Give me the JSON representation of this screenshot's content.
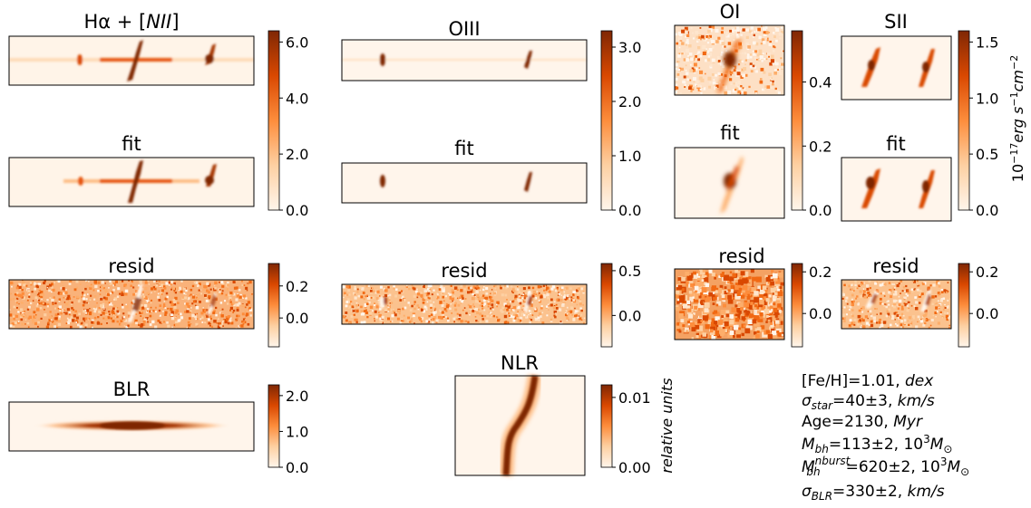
{
  "colors": {
    "cmap_low": "#fff5eb",
    "cmap_mid": "#f58b3a",
    "cmap_high": "#7f2704",
    "frame": "#000000"
  },
  "chart_data": {
    "type": "heatmap",
    "title": "",
    "units": {
      "flux": "10^{-17} erg s^{-1} cm^{-2}",
      "nlr": "relative units"
    },
    "panels": [
      {
        "id": "ha",
        "title": "Hα + [NII]",
        "cbar_ticks": [
          "0.0",
          "2.0",
          "4.0",
          "6.0"
        ],
        "vmin": 0,
        "vmax": 6.4
      },
      {
        "id": "ha_fit",
        "title": "fit",
        "shares_colorbar": "ha"
      },
      {
        "id": "ha_resid",
        "title": "resid",
        "cbar_ticks": [
          "0.0",
          "0.2"
        ],
        "vmin": -0.18,
        "vmax": 0.34
      },
      {
        "id": "blr",
        "title": "BLR",
        "cbar_ticks": [
          "0.0",
          "1.0",
          "2.0"
        ],
        "vmin": 0,
        "vmax": 2.3
      },
      {
        "id": "oiii",
        "title": "OIII",
        "cbar_ticks": [
          "0.0",
          "1.0",
          "2.0",
          "3.0"
        ],
        "vmin": 0,
        "vmax": 3.3
      },
      {
        "id": "oiii_fit",
        "title": "fit",
        "shares_colorbar": "oiii"
      },
      {
        "id": "oiii_resid",
        "title": "resid",
        "cbar_ticks": [
          "0.0",
          "0.5"
        ],
        "vmin": -0.35,
        "vmax": 0.58
      },
      {
        "id": "nlr",
        "title": "NLR",
        "cbar_ticks": [
          "0.00",
          "0.01"
        ],
        "vmin": 0,
        "vmax": 0.0118
      },
      {
        "id": "oi",
        "title": "OI",
        "cbar_ticks": [
          "0.0",
          "0.2",
          "0.4"
        ],
        "vmin": 0,
        "vmax": 0.56
      },
      {
        "id": "oi_fit",
        "title": "fit",
        "shares_colorbar": "oi"
      },
      {
        "id": "oi_resid",
        "title": "resid",
        "cbar_ticks": [
          "0.0",
          "0.2"
        ],
        "vmin": -0.16,
        "vmax": 0.24
      },
      {
        "id": "sii",
        "title": "SII",
        "cbar_ticks": [
          "0.0",
          "0.5",
          "1.0",
          "1.5"
        ],
        "vmin": 0,
        "vmax": 1.6
      },
      {
        "id": "sii_fit",
        "title": "fit",
        "shares_colorbar": "sii"
      },
      {
        "id": "sii_resid",
        "title": "resid",
        "cbar_ticks": [
          "0.0",
          "0.2"
        ],
        "vmin": -0.16,
        "vmax": 0.24
      }
    ],
    "info": {
      "feh": {
        "symbol": "[Fe/H]",
        "value": "=1.01, ",
        "unit": "dex"
      },
      "sigma_star": {
        "symbol": "σ",
        "sub": "star",
        "value": "=40±3, ",
        "unit": "km/s"
      },
      "age": {
        "symbol": "Age",
        "value": "=2130, ",
        "unit": "Myr"
      },
      "mbh": {
        "symbol": "M",
        "sub": "bh",
        "value": "=113±2, 10",
        "sup2": "3",
        "unit": "M",
        "unit_sub": "⊙"
      },
      "mbh_nburst": {
        "symbol": "M",
        "sub": "bh",
        "sup": "nburst",
        "value": "=620±2, 10",
        "sup2": "3",
        "unit": "M",
        "unit_sub": "⊙"
      },
      "sigma_blr": {
        "symbol": "σ",
        "sub": "BLR",
        "value": "=330±2, ",
        "unit": "km/s"
      }
    }
  }
}
